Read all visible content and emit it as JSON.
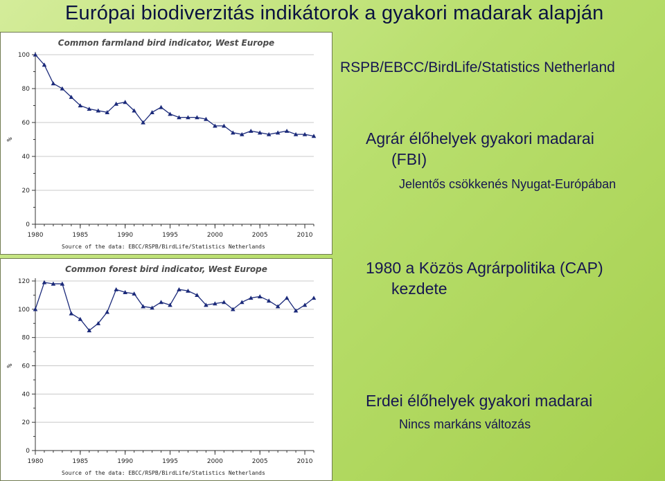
{
  "slide": {
    "title": "Európai biodiverzitás  indikátorok a gyakori madarak alapján",
    "source": "RSPB/EBCC/BirdLife/Statistics Netherland",
    "fbi_heading": "Agrár élőhelyek gyakori madarai (FBI)",
    "fbi_note": "Jelentős csökkenés Nyugat-Európában",
    "cap_text": "1980 a Közös Agrárpolitika (CAP) kezdete",
    "forest_heading": "Erdei élőhelyek gyakori madarai",
    "forest_note": "Nincs markáns változás"
  },
  "colors": {
    "background": "#b9df6e",
    "series": "#1b2a7a",
    "text": "#161650"
  },
  "chart_data": [
    {
      "type": "line",
      "title": "Common farmland bird indicator, West Europe",
      "ylabel": "%",
      "xlabel": "",
      "footer": "Source of the data: EBCC/RSPB/BirdLife/Statistics Netherlands",
      "x": [
        1980,
        1981,
        1982,
        1983,
        1984,
        1985,
        1986,
        1987,
        1988,
        1989,
        1990,
        1991,
        1992,
        1993,
        1994,
        1995,
        1996,
        1997,
        1998,
        1999,
        2000,
        2001,
        2002,
        2003,
        2004,
        2005,
        2006,
        2007,
        2008,
        2009,
        2010,
        2011
      ],
      "series": [
        {
          "name": "",
          "values": [
            100,
            94,
            83,
            80,
            75,
            70,
            68,
            67,
            66,
            71,
            72,
            67,
            60,
            66,
            69,
            65,
            63,
            63,
            63,
            62,
            58,
            58,
            54,
            53,
            55,
            54,
            53,
            54,
            55,
            53,
            53,
            52
          ]
        }
      ],
      "xlim": [
        1980,
        2011
      ],
      "ylim": [
        0,
        100
      ],
      "xticks": [
        1980,
        1985,
        1990,
        1995,
        2000,
        2005,
        2010
      ],
      "yticks": [
        0,
        20,
        40,
        60,
        80,
        100
      ],
      "grid": "horizontal",
      "marker": "triangle"
    },
    {
      "type": "line",
      "title": "Common forest bird indicator, West Europe",
      "ylabel": "%",
      "xlabel": "",
      "footer": "Source of the data: EBCC/RSPB/BirdLife/Statistics Netherlands",
      "x": [
        1980,
        1981,
        1982,
        1983,
        1984,
        1985,
        1986,
        1987,
        1988,
        1989,
        1990,
        1991,
        1992,
        1993,
        1994,
        1995,
        1996,
        1997,
        1998,
        1999,
        2000,
        2001,
        2002,
        2003,
        2004,
        2005,
        2006,
        2007,
        2008,
        2009,
        2010,
        2011
      ],
      "series": [
        {
          "name": "",
          "values": [
            100,
            119,
            118,
            118,
            97,
            93,
            85,
            90,
            98,
            114,
            112,
            111,
            102,
            101,
            105,
            103,
            114,
            113,
            110,
            103,
            104,
            105,
            100,
            105,
            108,
            109,
            106,
            102,
            108,
            99,
            103,
            108
          ]
        }
      ],
      "xlim": [
        1980,
        2011
      ],
      "ylim": [
        0,
        120
      ],
      "xticks": [
        1980,
        1985,
        1990,
        1995,
        2000,
        2005,
        2010
      ],
      "yticks": [
        0,
        20,
        40,
        60,
        80,
        100,
        120
      ],
      "grid": "horizontal",
      "marker": "triangle"
    }
  ]
}
